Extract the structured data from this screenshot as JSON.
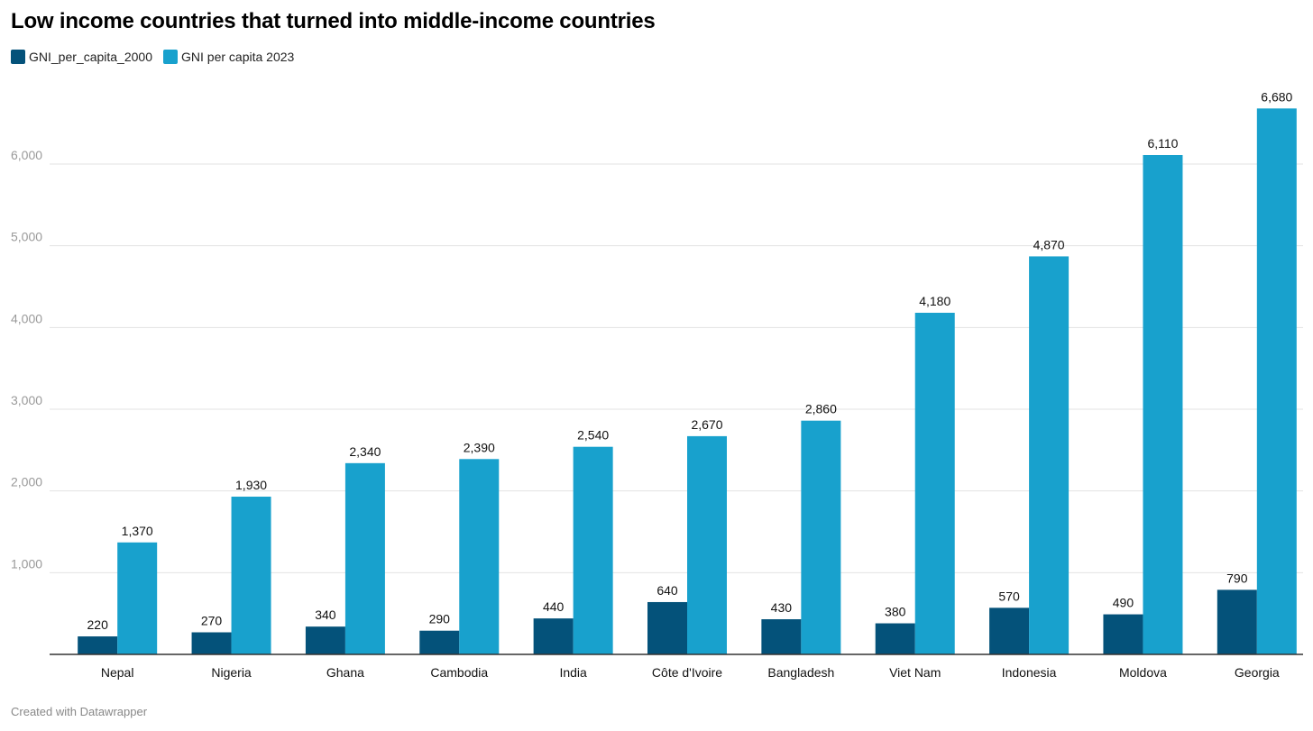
{
  "chart_data": {
    "type": "bar",
    "title": "Low income countries that turned into middle-income countries",
    "categories": [
      "Nepal",
      "Nigeria",
      "Ghana",
      "Cambodia",
      "India",
      "Côte d'Ivoire",
      "Bangladesh",
      "Viet Nam",
      "Indonesia",
      "Moldova",
      "Georgia"
    ],
    "series": [
      {
        "name": "GNI_per_capita_2000",
        "color": "#04527a",
        "values": [
          220,
          270,
          340,
          290,
          440,
          640,
          430,
          380,
          570,
          490,
          790
        ],
        "labels": [
          "220",
          "270",
          "340",
          "290",
          "440",
          "640",
          "430",
          "380",
          "570",
          "490",
          "790"
        ]
      },
      {
        "name": "GNI per capita 2023",
        "color": "#18a1cd",
        "values": [
          1370,
          1930,
          2340,
          2390,
          2540,
          2670,
          2860,
          4180,
          4870,
          6110,
          6680
        ],
        "labels": [
          "1,370",
          "1,930",
          "2,340",
          "2,390",
          "2,540",
          "2,670",
          "2,860",
          "4,180",
          "4,870",
          "6,110",
          "6,680"
        ]
      }
    ],
    "yticks": [
      1000,
      2000,
      3000,
      4000,
      5000,
      6000
    ],
    "ytick_labels": [
      "1,000",
      "2,000",
      "3,000",
      "4,000",
      "5,000",
      "6,000"
    ],
    "ylim": [
      0,
      6800
    ],
    "grid": true,
    "legend_position": "top-left"
  },
  "footer": {
    "credit": "Created with Datawrapper"
  }
}
